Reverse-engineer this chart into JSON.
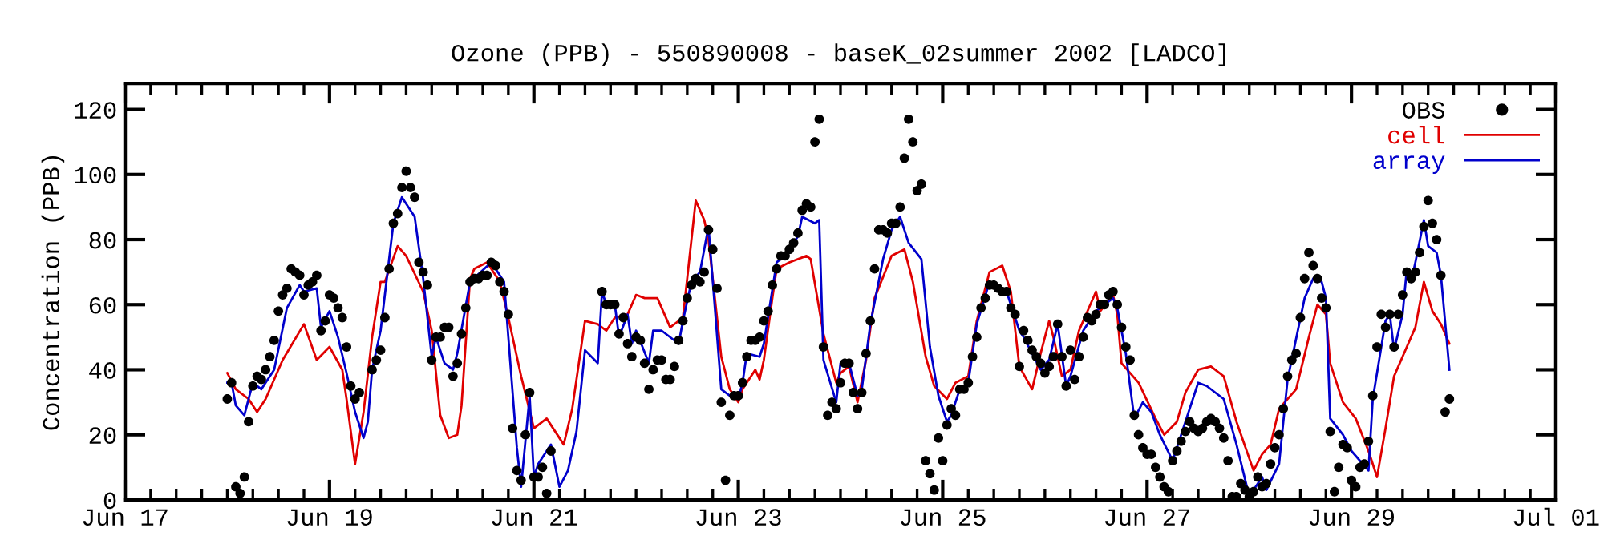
{
  "chart_data": {
    "type": "line",
    "title": "Ozone (PPB) - 550890008 - baseK_02summer 2002 [LADCO]",
    "ylabel": "Concentration (PPB)",
    "xlim": [
      "2002-06-17",
      "2002-07-01"
    ],
    "ylim": [
      0,
      128
    ],
    "yticks": [
      0,
      20,
      40,
      60,
      80,
      100,
      120
    ],
    "xticks": [
      {
        "value": "2002-06-17",
        "label": "Jun 17"
      },
      {
        "value": "2002-06-17T06:00",
        "label": null
      },
      {
        "value": "2002-06-17T12:00",
        "label": null
      },
      {
        "value": "2002-06-17T18:00",
        "label": null
      },
      {
        "value": "2002-06-18",
        "label": null
      },
      {
        "value": "2002-06-18T06:00",
        "label": null
      },
      {
        "value": "2002-06-18T12:00",
        "label": null
      },
      {
        "value": "2002-06-18T18:00",
        "label": null
      },
      {
        "value": "2002-06-19",
        "label": "Jun 19"
      },
      {
        "value": "2002-06-19T06:00",
        "label": null
      },
      {
        "value": "2002-06-19T12:00",
        "label": null
      },
      {
        "value": "2002-06-19T18:00",
        "label": null
      },
      {
        "value": "2002-06-20",
        "label": null
      },
      {
        "value": "2002-06-20T06:00",
        "label": null
      },
      {
        "value": "2002-06-20T12:00",
        "label": null
      },
      {
        "value": "2002-06-20T18:00",
        "label": null
      },
      {
        "value": "2002-06-21",
        "label": "Jun 21"
      },
      {
        "value": "2002-06-21T06:00",
        "label": null
      },
      {
        "value": "2002-06-21T12:00",
        "label": null
      },
      {
        "value": "2002-06-21T18:00",
        "label": null
      },
      {
        "value": "2002-06-22",
        "label": null
      },
      {
        "value": "2002-06-22T06:00",
        "label": null
      },
      {
        "value": "2002-06-22T12:00",
        "label": null
      },
      {
        "value": "2002-06-22T18:00",
        "label": null
      },
      {
        "value": "2002-06-23",
        "label": "Jun 23"
      },
      {
        "value": "2002-06-23T06:00",
        "label": null
      },
      {
        "value": "2002-06-23T12:00",
        "label": null
      },
      {
        "value": "2002-06-23T18:00",
        "label": null
      },
      {
        "value": "2002-06-24",
        "label": null
      },
      {
        "value": "2002-06-24T06:00",
        "label": null
      },
      {
        "value": "2002-06-24T12:00",
        "label": null
      },
      {
        "value": "2002-06-24T18:00",
        "label": null
      },
      {
        "value": "2002-06-25",
        "label": "Jun 25"
      },
      {
        "value": "2002-06-25T06:00",
        "label": null
      },
      {
        "value": "2002-06-25T12:00",
        "label": null
      },
      {
        "value": "2002-06-25T18:00",
        "label": null
      },
      {
        "value": "2002-06-26",
        "label": null
      },
      {
        "value": "2002-06-26T06:00",
        "label": null
      },
      {
        "value": "2002-06-26T12:00",
        "label": null
      },
      {
        "value": "2002-06-26T18:00",
        "label": null
      },
      {
        "value": "2002-06-27",
        "label": "Jun 27"
      },
      {
        "value": "2002-06-27T06:00",
        "label": null
      },
      {
        "value": "2002-06-27T12:00",
        "label": null
      },
      {
        "value": "2002-06-27T18:00",
        "label": null
      },
      {
        "value": "2002-06-28",
        "label": null
      },
      {
        "value": "2002-06-28T06:00",
        "label": null
      },
      {
        "value": "2002-06-28T12:00",
        "label": null
      },
      {
        "value": "2002-06-28T18:00",
        "label": null
      },
      {
        "value": "2002-06-29",
        "label": "Jun 29"
      },
      {
        "value": "2002-06-29T06:00",
        "label": null
      },
      {
        "value": "2002-06-29T12:00",
        "label": null
      },
      {
        "value": "2002-06-29T18:00",
        "label": null
      },
      {
        "value": "2002-06-30",
        "label": null
      },
      {
        "value": "2002-06-30T06:00",
        "label": null
      },
      {
        "value": "2002-06-30T12:00",
        "label": null
      },
      {
        "value": "2002-06-30T18:00",
        "label": null
      },
      {
        "value": "2002-07-01",
        "label": "Jul 01"
      }
    ],
    "grid": false,
    "legend": "top right",
    "line_style": "solid",
    "series": [
      {
        "name": "OBS",
        "type": "scatter",
        "marker": "circle",
        "color": "#000000",
        "x": [
          "2002-06-18T00:00",
          "2002-06-18T01:00",
          "2002-06-18T02:00",
          "2002-06-18T03:00",
          "2002-06-18T04:00",
          "2002-06-18T05:00",
          "2002-06-18T06:00",
          "2002-06-18T07:00",
          "2002-06-18T08:00",
          "2002-06-18T09:00",
          "2002-06-18T10:00",
          "2002-06-18T11:00",
          "2002-06-18T12:00",
          "2002-06-18T13:00",
          "2002-06-18T14:00",
          "2002-06-18T15:00",
          "2002-06-18T16:00",
          "2002-06-18T17:00",
          "2002-06-18T18:00",
          "2002-06-18T19:00",
          "2002-06-18T20:00",
          "2002-06-18T21:00",
          "2002-06-18T22:00",
          "2002-06-18T23:00",
          "2002-06-19T00:00",
          "2002-06-19T01:00",
          "2002-06-19T02:00",
          "2002-06-19T03:00",
          "2002-06-19T04:00",
          "2002-06-19T05:00",
          "2002-06-19T06:00",
          "2002-06-19T07:00",
          "2002-06-19T10:00",
          "2002-06-19T11:00",
          "2002-06-19T12:00",
          "2002-06-19T13:00",
          "2002-06-19T14:00",
          "2002-06-19T15:00",
          "2002-06-19T16:00",
          "2002-06-19T17:00",
          "2002-06-19T18:00",
          "2002-06-19T19:00",
          "2002-06-19T20:00",
          "2002-06-19T21:00",
          "2002-06-19T22:00",
          "2002-06-19T23:00",
          "2002-06-20T00:00",
          "2002-06-20T01:00",
          "2002-06-20T02:00",
          "2002-06-20T03:00",
          "2002-06-20T04:00",
          "2002-06-20T05:00",
          "2002-06-20T06:00",
          "2002-06-20T07:00",
          "2002-06-20T08:00",
          "2002-06-20T09:00",
          "2002-06-20T10:00",
          "2002-06-20T11:00",
          "2002-06-20T12:00",
          "2002-06-20T13:00",
          "2002-06-20T14:00",
          "2002-06-20T15:00",
          "2002-06-20T16:00",
          "2002-06-20T17:00",
          "2002-06-20T18:00",
          "2002-06-20T19:00",
          "2002-06-20T20:00",
          "2002-06-20T21:00",
          "2002-06-20T22:00",
          "2002-06-20T23:00",
          "2002-06-21T00:00",
          "2002-06-21T01:00",
          "2002-06-21T02:00",
          "2002-06-21T03:00",
          "2002-06-21T04:00",
          "2002-06-21T16:00",
          "2002-06-21T17:00",
          "2002-06-21T18:00",
          "2002-06-21T19:00",
          "2002-06-21T20:00",
          "2002-06-21T21:00",
          "2002-06-21T22:00",
          "2002-06-21T23:00",
          "2002-06-22T00:00",
          "2002-06-22T01:00",
          "2002-06-22T02:00",
          "2002-06-22T03:00",
          "2002-06-22T04:00",
          "2002-06-22T05:00",
          "2002-06-22T06:00",
          "2002-06-22T07:00",
          "2002-06-22T08:00",
          "2002-06-22T09:00",
          "2002-06-22T10:00",
          "2002-06-22T11:00",
          "2002-06-22T12:00",
          "2002-06-22T13:00",
          "2002-06-22T14:00",
          "2002-06-22T15:00",
          "2002-06-22T16:00",
          "2002-06-22T17:00",
          "2002-06-22T18:00",
          "2002-06-22T19:00",
          "2002-06-22T20:00",
          "2002-06-22T21:00",
          "2002-06-22T22:00",
          "2002-06-22T23:00",
          "2002-06-23T00:00",
          "2002-06-23T01:00",
          "2002-06-23T02:00",
          "2002-06-23T03:00",
          "2002-06-23T04:00",
          "2002-06-23T05:00",
          "2002-06-23T06:00",
          "2002-06-23T07:00",
          "2002-06-23T08:00",
          "2002-06-23T09:00",
          "2002-06-23T10:00",
          "2002-06-23T11:00",
          "2002-06-23T12:00",
          "2002-06-23T13:00",
          "2002-06-23T14:00",
          "2002-06-23T15:00",
          "2002-06-23T16:00",
          "2002-06-23T17:00",
          "2002-06-23T18:00",
          "2002-06-23T19:00",
          "2002-06-23T20:00",
          "2002-06-23T21:00",
          "2002-06-23T22:00",
          "2002-06-23T23:00",
          "2002-06-24T00:00",
          "2002-06-24T01:00",
          "2002-06-24T02:00",
          "2002-06-24T03:00",
          "2002-06-24T04:00",
          "2002-06-24T05:00",
          "2002-06-24T06:00",
          "2002-06-24T07:00",
          "2002-06-24T08:00",
          "2002-06-24T09:00",
          "2002-06-24T10:00",
          "2002-06-24T11:00",
          "2002-06-24T12:00",
          "2002-06-24T13:00",
          "2002-06-24T14:00",
          "2002-06-24T15:00",
          "2002-06-24T16:00",
          "2002-06-24T17:00",
          "2002-06-24T18:00",
          "2002-06-24T19:00",
          "2002-06-24T20:00",
          "2002-06-24T21:00",
          "2002-06-24T22:00",
          "2002-06-24T23:00",
          "2002-06-25T00:00",
          "2002-06-25T01:00",
          "2002-06-25T02:00",
          "2002-06-25T03:00",
          "2002-06-25T04:00",
          "2002-06-25T05:00",
          "2002-06-25T06:00",
          "2002-06-25T07:00",
          "2002-06-25T08:00",
          "2002-06-25T09:00",
          "2002-06-25T10:00",
          "2002-06-25T11:00",
          "2002-06-25T12:00",
          "2002-06-25T13:00",
          "2002-06-25T14:00",
          "2002-06-25T15:00",
          "2002-06-25T16:00",
          "2002-06-25T17:00",
          "2002-06-25T18:00",
          "2002-06-25T19:00",
          "2002-06-25T20:00",
          "2002-06-25T21:00",
          "2002-06-25T22:00",
          "2002-06-25T23:00",
          "2002-06-26T00:00",
          "2002-06-26T01:00",
          "2002-06-26T02:00",
          "2002-06-26T03:00",
          "2002-06-26T04:00",
          "2002-06-26T05:00",
          "2002-06-26T06:00",
          "2002-06-26T07:00",
          "2002-06-26T08:00",
          "2002-06-26T09:00",
          "2002-06-26T10:00",
          "2002-06-26T11:00",
          "2002-06-26T12:00",
          "2002-06-26T13:00",
          "2002-06-26T14:00",
          "2002-06-26T15:00",
          "2002-06-26T16:00",
          "2002-06-26T17:00",
          "2002-06-26T18:00",
          "2002-06-26T19:00",
          "2002-06-26T20:00",
          "2002-06-26T21:00",
          "2002-06-26T22:00",
          "2002-06-26T23:00",
          "2002-06-27T00:00",
          "2002-06-27T01:00",
          "2002-06-27T02:00",
          "2002-06-27T03:00",
          "2002-06-27T04:00",
          "2002-06-27T05:00",
          "2002-06-27T06:00",
          "2002-06-27T07:00",
          "2002-06-27T08:00",
          "2002-06-27T09:00",
          "2002-06-27T10:00",
          "2002-06-27T11:00",
          "2002-06-27T12:00",
          "2002-06-27T13:00",
          "2002-06-27T14:00",
          "2002-06-27T15:00",
          "2002-06-27T16:00",
          "2002-06-27T17:00",
          "2002-06-27T18:00",
          "2002-06-27T19:00",
          "2002-06-27T20:00",
          "2002-06-27T21:00",
          "2002-06-27T22:00",
          "2002-06-27T23:00",
          "2002-06-28T00:00",
          "2002-06-28T01:00",
          "2002-06-28T02:00",
          "2002-06-28T03:00",
          "2002-06-28T04:00",
          "2002-06-28T05:00",
          "2002-06-28T06:00",
          "2002-06-28T07:00",
          "2002-06-28T08:00",
          "2002-06-28T09:00",
          "2002-06-28T10:00",
          "2002-06-28T11:00",
          "2002-06-28T12:00",
          "2002-06-28T13:00",
          "2002-06-28T14:00",
          "2002-06-28T15:00",
          "2002-06-28T16:00",
          "2002-06-28T17:00",
          "2002-06-28T18:00",
          "2002-06-28T19:00",
          "2002-06-28T20:00",
          "2002-06-28T21:00",
          "2002-06-28T22:00",
          "2002-06-28T23:00",
          "2002-06-29T00:00",
          "2002-06-29T01:00",
          "2002-06-29T02:00",
          "2002-06-29T03:00",
          "2002-06-29T04:00",
          "2002-06-29T05:00",
          "2002-06-29T06:00",
          "2002-06-29T07:00",
          "2002-06-29T08:00",
          "2002-06-29T09:00",
          "2002-06-29T10:00",
          "2002-06-29T11:00",
          "2002-06-29T12:00",
          "2002-06-29T13:00",
          "2002-06-29T14:00",
          "2002-06-29T15:00",
          "2002-06-29T16:00",
          "2002-06-29T17:00",
          "2002-06-29T18:00",
          "2002-06-29T19:00",
          "2002-06-29T20:00",
          "2002-06-29T21:00",
          "2002-06-29T22:00",
          "2002-06-29T23:00"
        ],
        "values": [
          31,
          36,
          4,
          2,
          7,
          24,
          35,
          38,
          37,
          40,
          44,
          49,
          58,
          63,
          65,
          71,
          70,
          69,
          63,
          66,
          67,
          69,
          52,
          55,
          63,
          62,
          59,
          56,
          47,
          35,
          31,
          33,
          40,
          43,
          46,
          56,
          71,
          85,
          88,
          96,
          101,
          96,
          93,
          73,
          70,
          66,
          43,
          50,
          50,
          53,
          53,
          38,
          42,
          51,
          59,
          67,
          68,
          68,
          69,
          69,
          73,
          72,
          67,
          64,
          57,
          22,
          9,
          6,
          20,
          33,
          7,
          7,
          10,
          2,
          15,
          64,
          60,
          60,
          60,
          51,
          56,
          48,
          44,
          50,
          49,
          42,
          34,
          40,
          43,
          43,
          37,
          37,
          41,
          49,
          55,
          62,
          66,
          68,
          67,
          70,
          83,
          77,
          65,
          30,
          6,
          26,
          32,
          32,
          36,
          44,
          49,
          49,
          50,
          55,
          58,
          66,
          71,
          75,
          75,
          77,
          79,
          82,
          89,
          91,
          90,
          110,
          117,
          47,
          26,
          30,
          28,
          36,
          42,
          42,
          33,
          28,
          33,
          45,
          55,
          71,
          83,
          83,
          82,
          85,
          85,
          90,
          105,
          117,
          110,
          95,
          97,
          12,
          8,
          3,
          19,
          12,
          23,
          28,
          26,
          34,
          34,
          36,
          44,
          50,
          59,
          62,
          66,
          66,
          65,
          64,
          64,
          59,
          57,
          41,
          52,
          49,
          46,
          44,
          42,
          39,
          41,
          44,
          54,
          44,
          35,
          46,
          37,
          44,
          50,
          56,
          55,
          57,
          60,
          60,
          63,
          64,
          60,
          53,
          47,
          43,
          26,
          20,
          16,
          14,
          14,
          10,
          7,
          4,
          2.5,
          12,
          15,
          18,
          21,
          24,
          22,
          21,
          22,
          24,
          25,
          24,
          22,
          19,
          12,
          1,
          1,
          5,
          3,
          1,
          2.5,
          7,
          4,
          5,
          11,
          16,
          20,
          28,
          38,
          43,
          45,
          56,
          68,
          76,
          72,
          68,
          62,
          59,
          21,
          2.5,
          10,
          17,
          16,
          6,
          4,
          10,
          11,
          18,
          32,
          47,
          57,
          53,
          57,
          47,
          57,
          63,
          70,
          68,
          70,
          76,
          84,
          92,
          85,
          80,
          69,
          27,
          31
        ]
      },
      {
        "name": "cell",
        "color": "#e00000",
        "x": [
          "2002-06-18T00:00",
          "2002-06-18T02:00",
          "2002-06-18T05:00",
          "2002-06-18T07:00",
          "2002-06-18T09:00",
          "2002-06-18T13:00",
          "2002-06-18T18:00",
          "2002-06-18T21:00",
          "2002-06-19T00:00",
          "2002-06-19T03:00",
          "2002-06-19T04:00",
          "2002-06-19T06:00",
          "2002-06-19T08:00",
          "2002-06-19T10:00",
          "2002-06-19T12:00",
          "2002-06-19T13:00",
          "2002-06-19T16:00",
          "2002-06-19T18:00",
          "2002-06-19T22:00",
          "2002-06-20T00:00",
          "2002-06-20T02:00",
          "2002-06-20T04:00",
          "2002-06-20T06:00",
          "2002-06-20T07:00",
          "2002-06-20T09:00",
          "2002-06-20T10:00",
          "2002-06-20T13:00",
          "2002-06-20T16:00",
          "2002-06-20T18:00",
          "2002-06-20T21:00",
          "2002-06-21T00:00",
          "2002-06-21T03:00",
          "2002-06-21T05:00",
          "2002-06-21T07:00",
          "2002-06-21T09:00",
          "2002-06-21T12:00",
          "2002-06-21T15:00",
          "2002-06-21T17:00",
          "2002-06-21T19:00",
          "2002-06-21T22:00",
          "2002-06-22T00:00",
          "2002-06-22T02:00",
          "2002-06-22T05:00",
          "2002-06-22T08:00",
          "2002-06-22T11:00",
          "2002-06-22T12:00",
          "2002-06-22T14:00",
          "2002-06-22T16:00",
          "2002-06-22T17:00",
          "2002-06-22T20:00",
          "2002-06-22T22:00",
          "2002-06-23T00:00",
          "2002-06-23T01:00",
          "2002-06-23T04:00",
          "2002-06-23T05:00",
          "2002-06-23T06:00",
          "2002-06-23T08:00",
          "2002-06-23T09:00",
          "2002-06-23T12:00",
          "2002-06-23T16:00",
          "2002-06-23T17:00",
          "2002-06-23T20:00",
          "2002-06-23T23:00",
          "2002-06-24T00:00",
          "2002-06-24T02:00",
          "2002-06-24T04:00",
          "2002-06-24T06:00",
          "2002-06-24T08:00",
          "2002-06-24T12:00",
          "2002-06-24T15:00",
          "2002-06-24T17:00",
          "2002-06-24T20:00",
          "2002-06-24T22:00",
          "2002-06-25T01:00",
          "2002-06-25T03:00",
          "2002-06-25T06:00",
          "2002-06-25T08:00",
          "2002-06-25T11:00",
          "2002-06-25T14:00",
          "2002-06-25T16:00",
          "2002-06-25T18:00",
          "2002-06-25T21:00",
          "2002-06-25T23:00",
          "2002-06-26T01:00",
          "2002-06-26T02:00",
          "2002-06-26T04:00",
          "2002-06-26T06:00",
          "2002-06-26T08:00",
          "2002-06-26T12:00",
          "2002-06-26T13:00",
          "2002-06-26T16:00",
          "2002-06-26T17:00",
          "2002-06-26T18:00",
          "2002-06-26T22:00",
          "2002-06-27T02:00",
          "2002-06-27T04:00",
          "2002-06-27T07:00",
          "2002-06-27T09:00",
          "2002-06-27T12:00",
          "2002-06-27T15:00",
          "2002-06-27T18:00",
          "2002-06-27T21:00",
          "2002-06-28T01:00",
          "2002-06-28T03:00",
          "2002-06-28T05:00",
          "2002-06-28T07:00",
          "2002-06-28T11:00",
          "2002-06-28T14:00",
          "2002-06-28T16:00",
          "2002-06-28T18:00",
          "2002-06-28T19:00",
          "2002-06-28T22:00",
          "2002-06-29T01:00",
          "2002-06-29T04:00",
          "2002-06-29T06:00",
          "2002-06-29T08:00",
          "2002-06-29T10:00",
          "2002-06-29T13:00",
          "2002-06-29T15:00",
          "2002-06-29T17:00",
          "2002-06-29T19:00",
          "2002-06-29T21:00",
          "2002-06-29T23:00"
        ],
        "values": [
          39,
          34,
          31,
          27,
          31,
          43,
          54,
          43,
          47,
          40,
          31,
          11,
          27,
          50,
          67,
          67,
          78,
          75,
          64,
          52,
          26,
          19,
          20,
          29,
          68,
          71,
          73,
          67,
          56,
          38,
          22,
          25,
          21,
          17,
          28,
          55,
          54,
          52,
          56,
          57,
          63,
          62,
          62,
          53,
          56,
          68,
          92,
          86,
          80,
          44,
          34,
          30,
          34,
          40,
          37,
          43,
          62,
          71,
          73,
          75,
          74,
          51,
          36,
          39,
          41,
          30,
          43,
          62,
          75,
          77,
          67,
          44,
          35,
          31,
          36,
          38,
          55,
          70,
          72,
          64,
          41,
          34,
          45,
          55,
          50,
          38,
          40,
          52,
          64,
          58,
          63,
          57,
          42,
          36,
          25,
          20,
          24,
          33,
          40,
          41,
          38,
          24,
          9,
          14,
          17,
          28,
          34,
          50,
          60,
          57,
          42,
          30,
          25,
          15,
          7,
          22,
          38,
          47,
          53,
          67,
          58,
          54,
          48
        ]
      },
      {
        "name": "array",
        "color": "#0000cc",
        "x": [
          "2002-06-18T00:00",
          "2002-06-18T01:00",
          "2002-06-18T02:00",
          "2002-06-18T04:00",
          "2002-06-18T06:00",
          "2002-06-18T08:00",
          "2002-06-18T11:00",
          "2002-06-18T14:00",
          "2002-06-18T17:00",
          "2002-06-18T18:00",
          "2002-06-18T21:00",
          "2002-06-18T22:00",
          "2002-06-19T00:00",
          "2002-06-19T02:00",
          "2002-06-19T04:00",
          "2002-06-19T06:00",
          "2002-06-19T08:00",
          "2002-06-19T09:00",
          "2002-06-19T10:00",
          "2002-06-19T12:00",
          "2002-06-19T15:00",
          "2002-06-19T17:00",
          "2002-06-19T20:00",
          "2002-06-19T22:00",
          "2002-06-20T00:00",
          "2002-06-20T01:00",
          "2002-06-20T03:00",
          "2002-06-20T05:00",
          "2002-06-20T06:00",
          "2002-06-20T09:00",
          "2002-06-20T14:00",
          "2002-06-20T17:00",
          "2002-06-20T18:00",
          "2002-06-20T20:00",
          "2002-06-20T21:00",
          "2002-06-20T23:00",
          "2002-06-21T00:00",
          "2002-06-21T01:00",
          "2002-06-21T04:00",
          "2002-06-21T06:00",
          "2002-06-21T08:00",
          "2002-06-21T10:00",
          "2002-06-21T12:00",
          "2002-06-21T15:00",
          "2002-06-21T16:00",
          "2002-06-21T17:00",
          "2002-06-21T19:00",
          "2002-06-21T20:00",
          "2002-06-21T22:00",
          "2002-06-21T23:00",
          "2002-06-22T00:00",
          "2002-06-22T03:00",
          "2002-06-22T04:00",
          "2002-06-22T06:00",
          "2002-06-22T10:00",
          "2002-06-22T11:00",
          "2002-06-22T13:00",
          "2002-06-22T15:00",
          "2002-06-22T17:00",
          "2002-06-22T20:00",
          "2002-06-22T22:00",
          "2002-06-23T00:00",
          "2002-06-23T01:00",
          "2002-06-23T02:00",
          "2002-06-23T05:00",
          "2002-06-23T06:00",
          "2002-06-23T09:00",
          "2002-06-23T11:00",
          "2002-06-23T14:00",
          "2002-06-23T15:00",
          "2002-06-23T18:00",
          "2002-06-23T19:00",
          "2002-06-23T20:00",
          "2002-06-23T23:00",
          "2002-06-24T00:00",
          "2002-06-24T02:00",
          "2002-06-24T04:00",
          "2002-06-24T05:00",
          "2002-06-24T07:00",
          "2002-06-24T10:00",
          "2002-06-24T12:00",
          "2002-06-24T14:00",
          "2002-06-24T16:00",
          "2002-06-24T19:00",
          "2002-06-24T21:00",
          "2002-06-24T23:00",
          "2002-06-25T01:00",
          "2002-06-25T02:00",
          "2002-06-25T04:00",
          "2002-06-25T06:00",
          "2002-06-25T08:00",
          "2002-06-25T11:00",
          "2002-06-25T15:00",
          "2002-06-25T17:00",
          "2002-06-25T18:00",
          "2002-06-25T19:00",
          "2002-06-25T23:00",
          "2002-06-26T01:00",
          "2002-06-26T03:00",
          "2002-06-26T05:00",
          "2002-06-26T06:00",
          "2002-06-26T09:00",
          "2002-06-26T12:00",
          "2002-06-26T14:00",
          "2002-06-26T16:00",
          "2002-06-26T17:00",
          "2002-06-26T19:00",
          "2002-06-26T21:00",
          "2002-06-26T23:00",
          "2002-06-27T01:00",
          "2002-06-27T03:00",
          "2002-06-27T06:00",
          "2002-06-27T08:00",
          "2002-06-27T12:00",
          "2002-06-27T14:00",
          "2002-06-27T18:00",
          "2002-06-27T21:00",
          "2002-06-28T00:00",
          "2002-06-28T03:00",
          "2002-06-28T04:00",
          "2002-06-28T07:00",
          "2002-06-28T09:00",
          "2002-06-28T13:00",
          "2002-06-28T15:00",
          "2002-06-28T17:00",
          "2002-06-28T18:00",
          "2002-06-28T19:00",
          "2002-06-28T22:00",
          "2002-06-29T00:00",
          "2002-06-29T04:00",
          "2002-06-29T05:00",
          "2002-06-29T08:00",
          "2002-06-29T09:00",
          "2002-06-29T10:00",
          "2002-06-29T12:00",
          "2002-06-29T13:00",
          "2002-06-29T14:00",
          "2002-06-29T15:00",
          "2002-06-29T17:00",
          "2002-06-29T18:00",
          "2002-06-29T20:00",
          "2002-06-29T21:00",
          "2002-06-29T23:00"
        ],
        "values": [
          36,
          36,
          29,
          26,
          36,
          34,
          40,
          59,
          66,
          64,
          65,
          53,
          58,
          50,
          39,
          27,
          19,
          24,
          40,
          52,
          85,
          93,
          87,
          68,
          44,
          50,
          42,
          40,
          45,
          67,
          73,
          67,
          50,
          16,
          4,
          32,
          7,
          11,
          17,
          4,
          9,
          21,
          46,
          42,
          64,
          60,
          60,
          50,
          57,
          48,
          52,
          42,
          52,
          52,
          48,
          55,
          67,
          70,
          84,
          34,
          32,
          31,
          36,
          45,
          44,
          48,
          73,
          75,
          81,
          87,
          85,
          86,
          43,
          30,
          42,
          42,
          32,
          34,
          54,
          74,
          83,
          87,
          79,
          74,
          47,
          32,
          24,
          26,
          34,
          36,
          54,
          67,
          64,
          56,
          52,
          50,
          40,
          43,
          54,
          35,
          38,
          52,
          58,
          60,
          62,
          59,
          45,
          25,
          30,
          27,
          20,
          12,
          20,
          36,
          35,
          31,
          17,
          1,
          7,
          3,
          11,
          37,
          62,
          68,
          67,
          62,
          25,
          20,
          15,
          9,
          31,
          55,
          57,
          46,
          57,
          71,
          67,
          73,
          86,
          78,
          76,
          69,
          40
        ]
      }
    ]
  }
}
